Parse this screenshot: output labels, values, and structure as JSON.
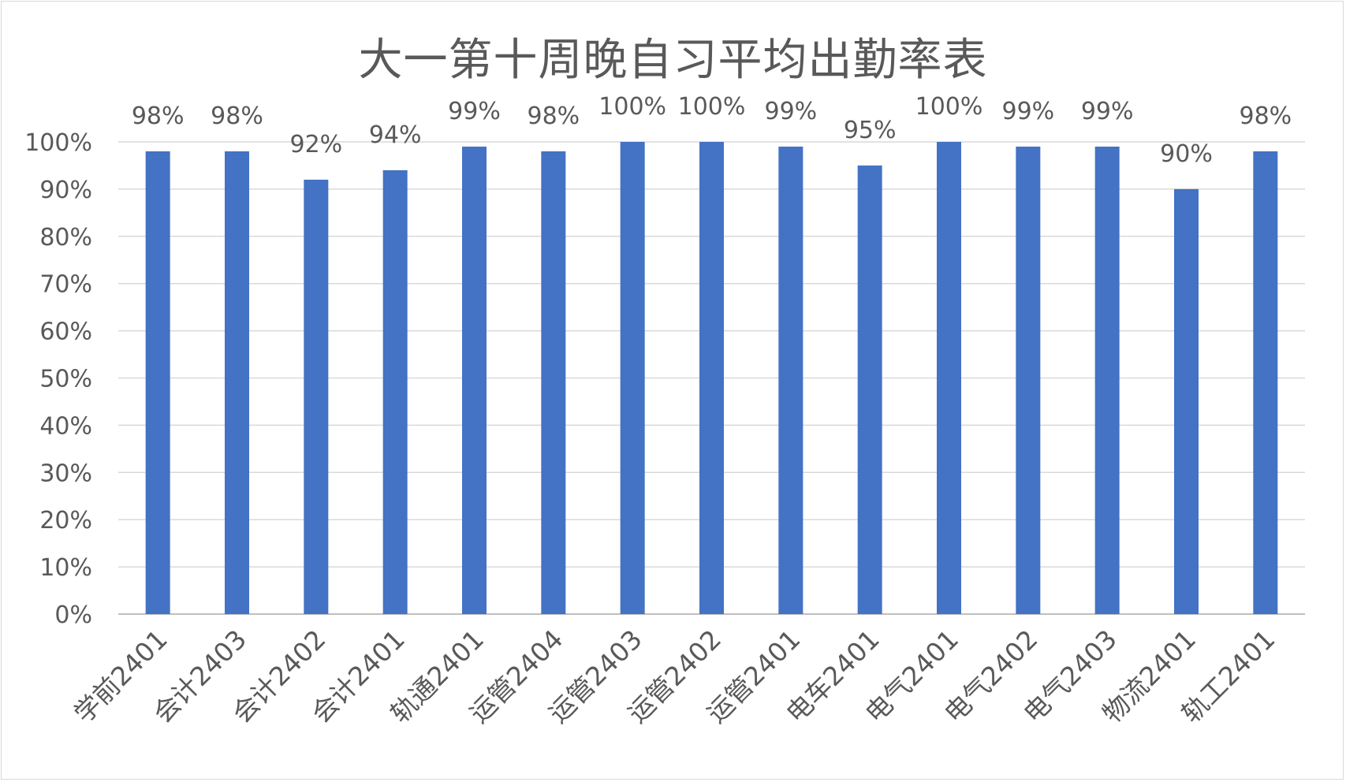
{
  "chart_data": {
    "type": "bar",
    "title": "大一第十周晚自习平均出勤率表",
    "categories": [
      "学前2401",
      "会计2403",
      "会计2402",
      "会计2401",
      "轨通2401",
      "运管2404",
      "运管2403",
      "运管2402",
      "运管2401",
      "电车2401",
      "电气2401",
      "电气2402",
      "电气2403",
      "物流2401",
      "轨工2401"
    ],
    "values": [
      98,
      98,
      92,
      94,
      99,
      98,
      100,
      100,
      99,
      95,
      100,
      99,
      99,
      90,
      98
    ],
    "data_labels": [
      "98%",
      "98%",
      "92%",
      "94%",
      "99%",
      "98%",
      "100%",
      "100%",
      "99%",
      "95%",
      "100%",
      "99%",
      "99%",
      "90%",
      "98%"
    ],
    "y_ticks": [
      "0%",
      "10%",
      "20%",
      "30%",
      "40%",
      "50%",
      "60%",
      "70%",
      "80%",
      "90%",
      "100%"
    ],
    "ylim": [
      0,
      100
    ],
    "xlabel": "",
    "ylabel": "",
    "grid": true,
    "legend": "none",
    "bar_color": "#4472c4",
    "grid_color": "#d9d9d9",
    "text_color": "#595959"
  }
}
